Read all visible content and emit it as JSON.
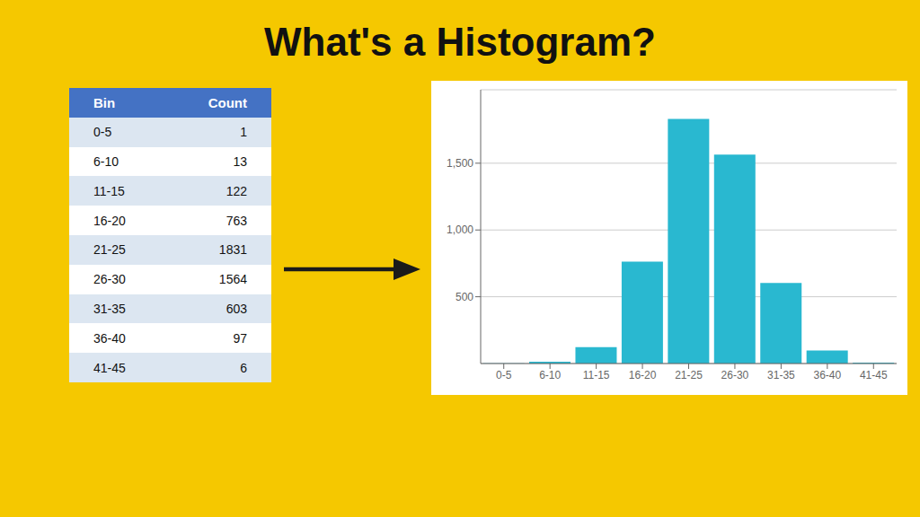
{
  "chart_data": [
    {
      "type": "table",
      "columns": [
        "Bin",
        "Count"
      ],
      "categories": [
        "0-5",
        "6-10",
        "11-15",
        "16-20",
        "21-25",
        "26-30",
        "31-35",
        "36-40",
        "41-45"
      ],
      "values": [
        1,
        13,
        122,
        763,
        1831,
        1564,
        603,
        97,
        6
      ]
    },
    {
      "type": "bar",
      "title": "What's a Histogram?",
      "categories": [
        "0-5",
        "6-10",
        "11-15",
        "16-20",
        "21-25",
        "26-30",
        "31-35",
        "36-40",
        "41-45"
      ],
      "values": [
        1,
        13,
        122,
        763,
        1831,
        1564,
        603,
        97,
        6
      ],
      "color": "#29B8D0",
      "ylim": [
        0,
        2050
      ],
      "yticks": [
        500,
        {
          "value": 1000,
          "label": "1,000"
        },
        {
          "value": 1500,
          "label": "1,500"
        }
      ],
      "grid": true
    }
  ]
}
